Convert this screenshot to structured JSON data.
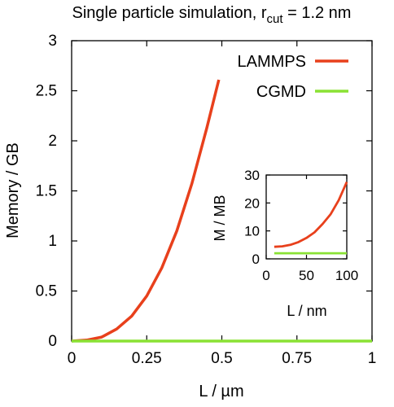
{
  "chart_data": [
    {
      "type": "line",
      "title_main": "Single particle simulation, r",
      "title_sub": "cut",
      "title_tail": " = 1.2 nm",
      "xlabel": "L / µm",
      "ylabel": "Memory / GB",
      "xlim": [
        0,
        1
      ],
      "ylim": [
        0,
        3
      ],
      "x_ticks": [
        "0",
        "0.25",
        "0.5",
        "0.75",
        "1"
      ],
      "y_ticks": [
        "0",
        "0.5",
        "1",
        "1.5",
        "2",
        "2.5",
        "3"
      ],
      "grid": false,
      "legend": "top-right",
      "series": [
        {
          "name": "LAMMPS",
          "color": "#e8401c",
          "x": [
            0,
            0.05,
            0.1,
            0.15,
            0.2,
            0.25,
            0.3,
            0.35,
            0.4,
            0.45,
            0.49
          ],
          "y": [
            0.0,
            0.01,
            0.04,
            0.12,
            0.25,
            0.45,
            0.73,
            1.1,
            1.57,
            2.13,
            2.61
          ]
        },
        {
          "name": "CGMD",
          "color": "#8ae234",
          "x": [
            0,
            1
          ],
          "y": [
            0.0,
            0.0
          ]
        }
      ]
    },
    {
      "type": "line",
      "role": "inset",
      "xlabel": "L / nm",
      "ylabel": "M / MB",
      "xlim": [
        0,
        100
      ],
      "ylim": [
        0,
        30
      ],
      "x_ticks": [
        "0",
        "50",
        "100"
      ],
      "y_ticks": [
        "0",
        "10",
        "20",
        "30"
      ],
      "grid": false,
      "series": [
        {
          "name": "LAMMPS",
          "color": "#e8401c",
          "x": [
            10,
            20,
            30,
            40,
            50,
            60,
            70,
            80,
            90,
            100
          ],
          "y": [
            4.3,
            4.5,
            5.0,
            6.0,
            7.5,
            9.5,
            12.5,
            16.0,
            21.0,
            27.5
          ]
        },
        {
          "name": "CGMD",
          "color": "#8ae234",
          "x": [
            10,
            100
          ],
          "y": [
            2.0,
            2.0
          ]
        }
      ]
    }
  ]
}
